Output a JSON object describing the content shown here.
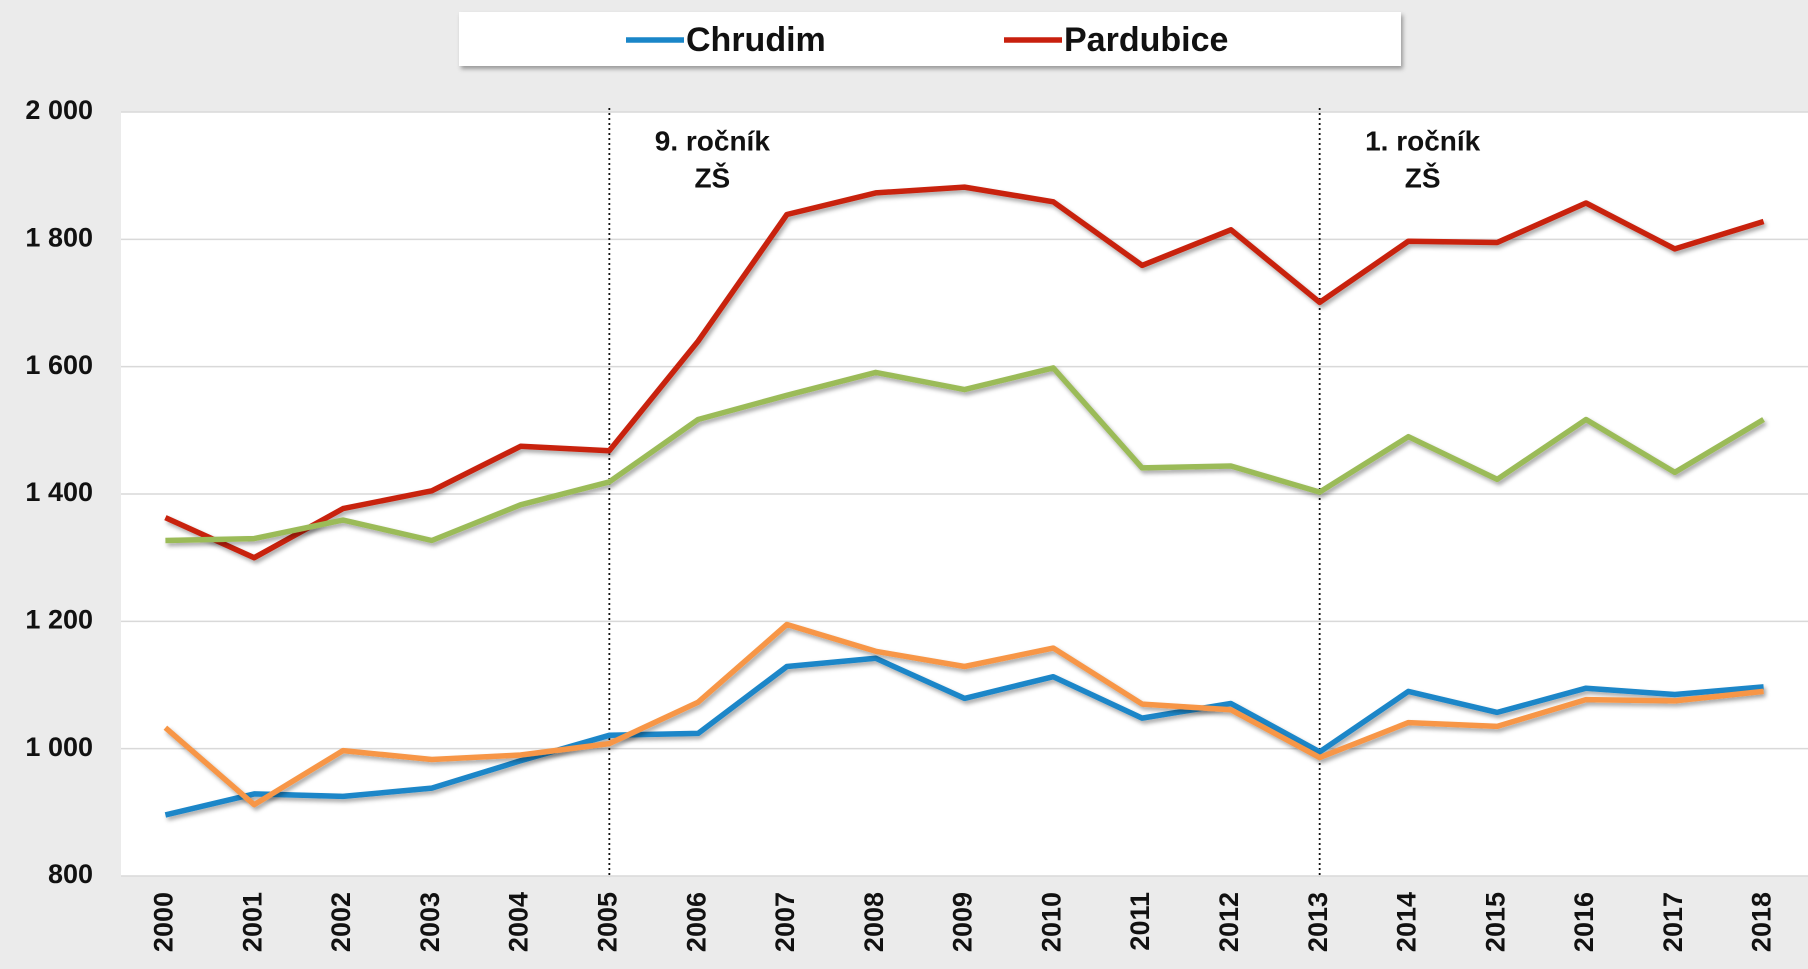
{
  "chart_data": {
    "type": "line",
    "categories": [
      "2000",
      "2001",
      "2002",
      "2003",
      "2004",
      "2005",
      "2006",
      "2007",
      "2008",
      "2009",
      "2010",
      "2011",
      "2012",
      "2013",
      "2014",
      "2015",
      "2016",
      "2017",
      "2018"
    ],
    "series": [
      {
        "name": "Chrudim",
        "color": "#1a86c8",
        "values": [
          896,
          929,
          925,
          938,
          981,
          1021,
          1024,
          1129,
          1142,
          1079,
          1113,
          1048,
          1071,
          995,
          1090,
          1057,
          1095,
          1085,
          1097
        ]
      },
      {
        "name": "Pardubice",
        "color": "#c8200e",
        "values": [
          1363,
          1300,
          1377,
          1405,
          1475,
          1468,
          1640,
          1839,
          1873,
          1882,
          1859,
          1759,
          1815,
          1701,
          1797,
          1795,
          1857,
          1785,
          1828
        ]
      },
      {
        "color": "#9bbb59",
        "values": [
          1327,
          1330,
          1359,
          1327,
          1383,
          1419,
          1517,
          1555,
          1591,
          1564,
          1598,
          1441,
          1444,
          1403,
          1490,
          1423,
          1517,
          1434,
          1517
        ]
      },
      {
        "color": "#f79646",
        "values": [
          1033,
          912,
          997,
          983,
          990,
          1008,
          1073,
          1195,
          1153,
          1129,
          1158,
          1070,
          1061,
          986,
          1041,
          1035,
          1077,
          1075,
          1090
        ]
      }
    ],
    "ylim": [
      800,
      2000
    ],
    "yticks": [
      800,
      {
        "value": 1000,
        "label": "1 000"
      },
      {
        "value": 1200,
        "label": "1 200"
      },
      {
        "value": 1400,
        "label": "1 400"
      },
      {
        "value": 1600,
        "label": "1 600"
      },
      {
        "value": 1800,
        "label": "1 800"
      },
      {
        "value": 2000,
        "label": "2 000"
      }
    ],
    "grid": true,
    "legend": "top",
    "annotations": [
      {
        "category": "2005",
        "lines": [
          "9. ročník",
          "ZŠ"
        ]
      },
      {
        "category": "2013",
        "lines": [
          "1. ročník",
          "ZŠ"
        ]
      }
    ]
  }
}
